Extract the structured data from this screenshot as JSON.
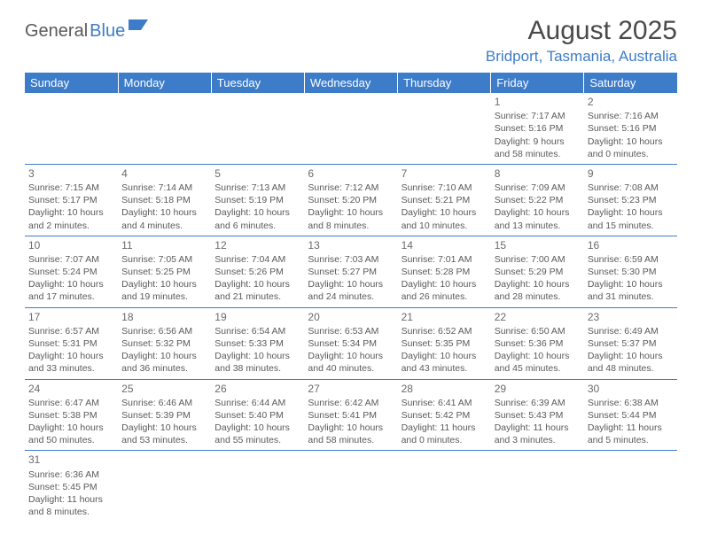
{
  "logo": {
    "part1": "General",
    "part2": "Blue"
  },
  "title": "August 2025",
  "location": "Bridport, Tasmania, Australia",
  "colors": {
    "header_bg": "#3d7cc9",
    "header_text": "#ffffff",
    "accent": "#3d7cc9",
    "body_text": "#5a5a5a",
    "background": "#ffffff"
  },
  "days_of_week": [
    "Sunday",
    "Monday",
    "Tuesday",
    "Wednesday",
    "Thursday",
    "Friday",
    "Saturday"
  ],
  "weeks": [
    [
      null,
      null,
      null,
      null,
      null,
      {
        "n": "1",
        "sr": "Sunrise: 7:17 AM",
        "ss": "Sunset: 5:16 PM",
        "d1": "Daylight: 9 hours",
        "d2": "and 58 minutes."
      },
      {
        "n": "2",
        "sr": "Sunrise: 7:16 AM",
        "ss": "Sunset: 5:16 PM",
        "d1": "Daylight: 10 hours",
        "d2": "and 0 minutes."
      }
    ],
    [
      {
        "n": "3",
        "sr": "Sunrise: 7:15 AM",
        "ss": "Sunset: 5:17 PM",
        "d1": "Daylight: 10 hours",
        "d2": "and 2 minutes."
      },
      {
        "n": "4",
        "sr": "Sunrise: 7:14 AM",
        "ss": "Sunset: 5:18 PM",
        "d1": "Daylight: 10 hours",
        "d2": "and 4 minutes."
      },
      {
        "n": "5",
        "sr": "Sunrise: 7:13 AM",
        "ss": "Sunset: 5:19 PM",
        "d1": "Daylight: 10 hours",
        "d2": "and 6 minutes."
      },
      {
        "n": "6",
        "sr": "Sunrise: 7:12 AM",
        "ss": "Sunset: 5:20 PM",
        "d1": "Daylight: 10 hours",
        "d2": "and 8 minutes."
      },
      {
        "n": "7",
        "sr": "Sunrise: 7:10 AM",
        "ss": "Sunset: 5:21 PM",
        "d1": "Daylight: 10 hours",
        "d2": "and 10 minutes."
      },
      {
        "n": "8",
        "sr": "Sunrise: 7:09 AM",
        "ss": "Sunset: 5:22 PM",
        "d1": "Daylight: 10 hours",
        "d2": "and 13 minutes."
      },
      {
        "n": "9",
        "sr": "Sunrise: 7:08 AM",
        "ss": "Sunset: 5:23 PM",
        "d1": "Daylight: 10 hours",
        "d2": "and 15 minutes."
      }
    ],
    [
      {
        "n": "10",
        "sr": "Sunrise: 7:07 AM",
        "ss": "Sunset: 5:24 PM",
        "d1": "Daylight: 10 hours",
        "d2": "and 17 minutes."
      },
      {
        "n": "11",
        "sr": "Sunrise: 7:05 AM",
        "ss": "Sunset: 5:25 PM",
        "d1": "Daylight: 10 hours",
        "d2": "and 19 minutes."
      },
      {
        "n": "12",
        "sr": "Sunrise: 7:04 AM",
        "ss": "Sunset: 5:26 PM",
        "d1": "Daylight: 10 hours",
        "d2": "and 21 minutes."
      },
      {
        "n": "13",
        "sr": "Sunrise: 7:03 AM",
        "ss": "Sunset: 5:27 PM",
        "d1": "Daylight: 10 hours",
        "d2": "and 24 minutes."
      },
      {
        "n": "14",
        "sr": "Sunrise: 7:01 AM",
        "ss": "Sunset: 5:28 PM",
        "d1": "Daylight: 10 hours",
        "d2": "and 26 minutes."
      },
      {
        "n": "15",
        "sr": "Sunrise: 7:00 AM",
        "ss": "Sunset: 5:29 PM",
        "d1": "Daylight: 10 hours",
        "d2": "and 28 minutes."
      },
      {
        "n": "16",
        "sr": "Sunrise: 6:59 AM",
        "ss": "Sunset: 5:30 PM",
        "d1": "Daylight: 10 hours",
        "d2": "and 31 minutes."
      }
    ],
    [
      {
        "n": "17",
        "sr": "Sunrise: 6:57 AM",
        "ss": "Sunset: 5:31 PM",
        "d1": "Daylight: 10 hours",
        "d2": "and 33 minutes."
      },
      {
        "n": "18",
        "sr": "Sunrise: 6:56 AM",
        "ss": "Sunset: 5:32 PM",
        "d1": "Daylight: 10 hours",
        "d2": "and 36 minutes."
      },
      {
        "n": "19",
        "sr": "Sunrise: 6:54 AM",
        "ss": "Sunset: 5:33 PM",
        "d1": "Daylight: 10 hours",
        "d2": "and 38 minutes."
      },
      {
        "n": "20",
        "sr": "Sunrise: 6:53 AM",
        "ss": "Sunset: 5:34 PM",
        "d1": "Daylight: 10 hours",
        "d2": "and 40 minutes."
      },
      {
        "n": "21",
        "sr": "Sunrise: 6:52 AM",
        "ss": "Sunset: 5:35 PM",
        "d1": "Daylight: 10 hours",
        "d2": "and 43 minutes."
      },
      {
        "n": "22",
        "sr": "Sunrise: 6:50 AM",
        "ss": "Sunset: 5:36 PM",
        "d1": "Daylight: 10 hours",
        "d2": "and 45 minutes."
      },
      {
        "n": "23",
        "sr": "Sunrise: 6:49 AM",
        "ss": "Sunset: 5:37 PM",
        "d1": "Daylight: 10 hours",
        "d2": "and 48 minutes."
      }
    ],
    [
      {
        "n": "24",
        "sr": "Sunrise: 6:47 AM",
        "ss": "Sunset: 5:38 PM",
        "d1": "Daylight: 10 hours",
        "d2": "and 50 minutes."
      },
      {
        "n": "25",
        "sr": "Sunrise: 6:46 AM",
        "ss": "Sunset: 5:39 PM",
        "d1": "Daylight: 10 hours",
        "d2": "and 53 minutes."
      },
      {
        "n": "26",
        "sr": "Sunrise: 6:44 AM",
        "ss": "Sunset: 5:40 PM",
        "d1": "Daylight: 10 hours",
        "d2": "and 55 minutes."
      },
      {
        "n": "27",
        "sr": "Sunrise: 6:42 AM",
        "ss": "Sunset: 5:41 PM",
        "d1": "Daylight: 10 hours",
        "d2": "and 58 minutes."
      },
      {
        "n": "28",
        "sr": "Sunrise: 6:41 AM",
        "ss": "Sunset: 5:42 PM",
        "d1": "Daylight: 11 hours",
        "d2": "and 0 minutes."
      },
      {
        "n": "29",
        "sr": "Sunrise: 6:39 AM",
        "ss": "Sunset: 5:43 PM",
        "d1": "Daylight: 11 hours",
        "d2": "and 3 minutes."
      },
      {
        "n": "30",
        "sr": "Sunrise: 6:38 AM",
        "ss": "Sunset: 5:44 PM",
        "d1": "Daylight: 11 hours",
        "d2": "and 5 minutes."
      }
    ],
    [
      {
        "n": "31",
        "sr": "Sunrise: 6:36 AM",
        "ss": "Sunset: 5:45 PM",
        "d1": "Daylight: 11 hours",
        "d2": "and 8 minutes."
      },
      null,
      null,
      null,
      null,
      null,
      null
    ]
  ]
}
